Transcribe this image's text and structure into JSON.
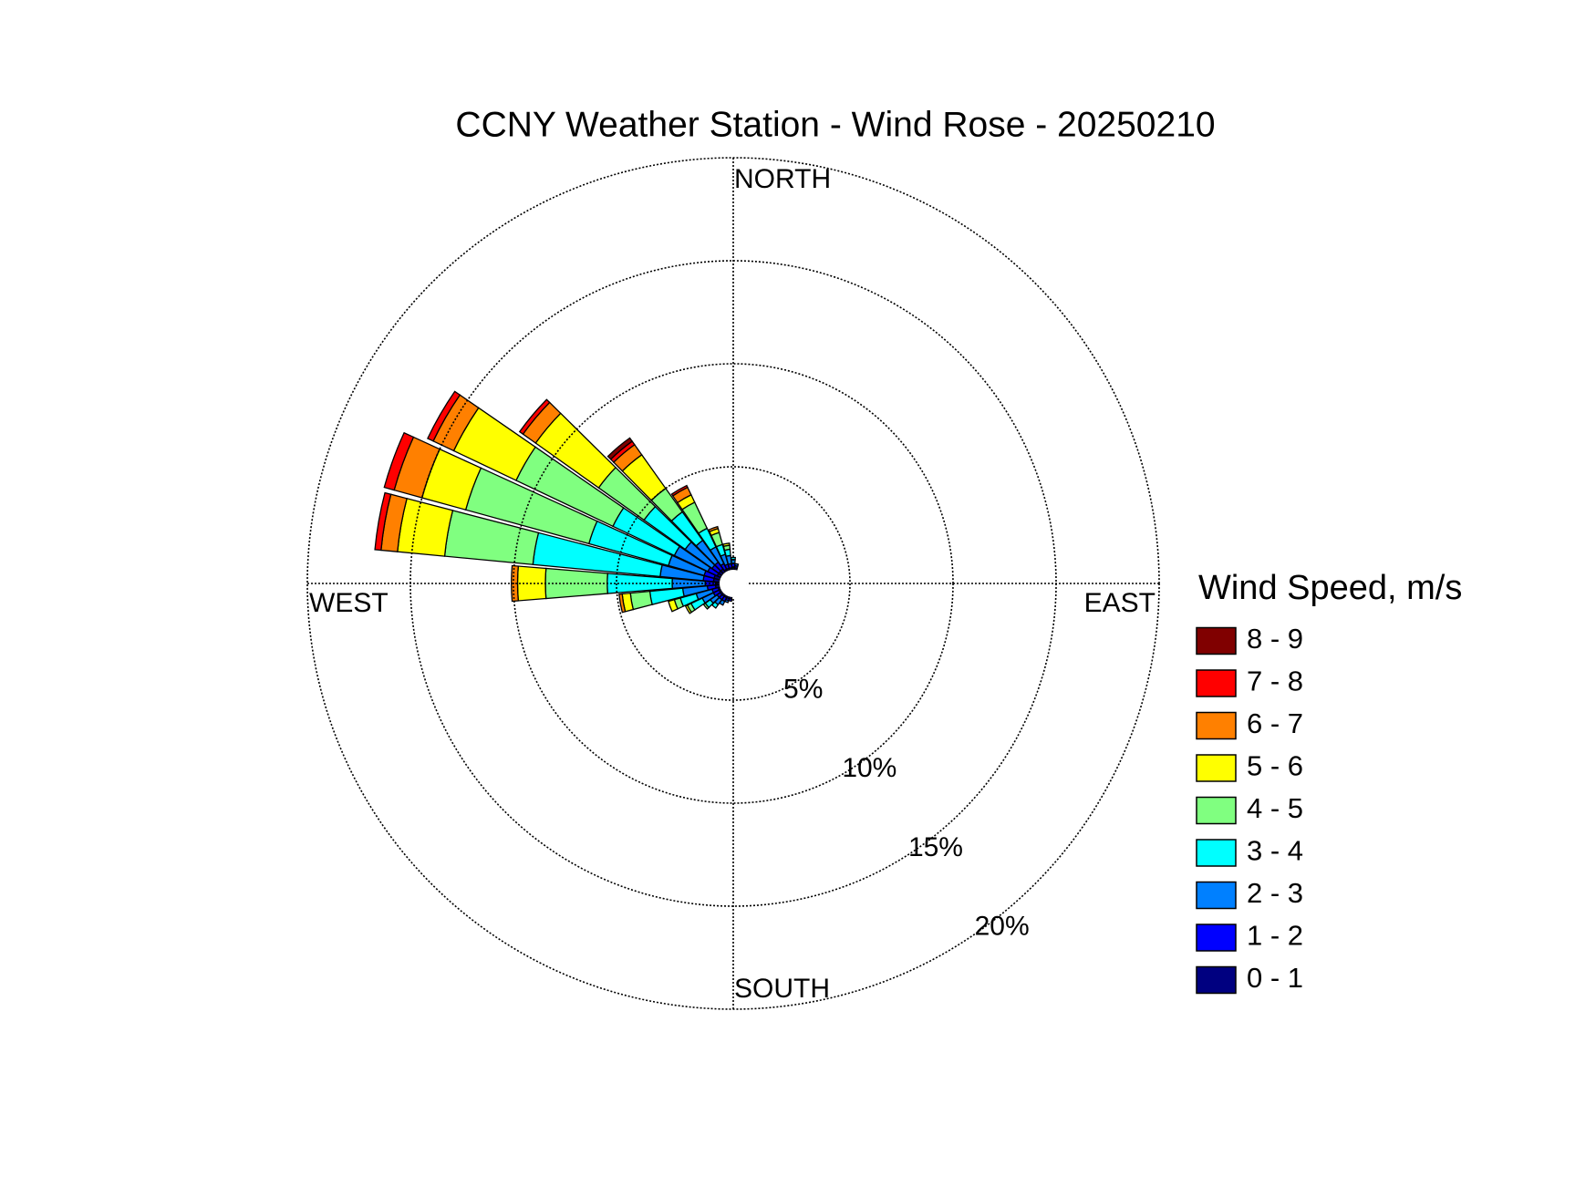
{
  "chart_data": {
    "type": "windrose",
    "title": "CCNY Weather Station - Wind Rose - 20250210",
    "direction_labels": [
      "NORTH",
      "EAST",
      "SOUTH",
      "WEST"
    ],
    "legend_title": "Wind Speed, m/s",
    "x": [
      0,
      10,
      20,
      30,
      40,
      50,
      60,
      70,
      80,
      90,
      100,
      110,
      120,
      130,
      140,
      150,
      160,
      170,
      180,
      190,
      200,
      210,
      220,
      230,
      240,
      250,
      260,
      270,
      280,
      290,
      300,
      310,
      320,
      330,
      340,
      350
    ],
    "rlim": [
      0,
      20
    ],
    "rticks": [
      {
        "value": 5,
        "label": "5%"
      },
      {
        "value": 10,
        "label": "10%"
      },
      {
        "value": 15,
        "label": "15%"
      },
      {
        "value": 20,
        "label": "20%"
      }
    ],
    "grid": true,
    "series": [
      {
        "name": "0 - 1",
        "color": "#000080",
        "values": [
          0.1,
          0.1,
          0,
          0,
          0,
          0,
          0,
          0,
          0,
          0,
          0,
          0,
          0,
          0,
          0,
          0,
          0,
          0,
          0,
          0.1,
          0.1,
          0.1,
          0.1,
          0.1,
          0.1,
          0.1,
          0.2,
          0.2,
          0.3,
          0.3,
          0.2,
          0.2,
          0.2,
          0.1,
          0.1,
          0.1
        ]
      },
      {
        "name": "1 - 2",
        "color": "#0000ff",
        "values": [
          0.2,
          0.1,
          0,
          0,
          0,
          0,
          0,
          0,
          0,
          0,
          0,
          0,
          0,
          0,
          0,
          0,
          0,
          0,
          0,
          0.1,
          0.1,
          0.2,
          0.2,
          0.2,
          0.3,
          0.3,
          0.4,
          0.5,
          0.5,
          0.5,
          0.5,
          0.4,
          0.4,
          0.3,
          0.2,
          0.2
        ]
      },
      {
        "name": "2 - 3",
        "color": "#0080ff",
        "values": [
          0.2,
          0.1,
          0,
          0,
          0,
          0,
          0,
          0,
          0,
          0,
          0,
          0,
          0,
          0,
          0,
          0,
          0,
          0,
          0,
          0,
          0.1,
          0.2,
          0.3,
          0.4,
          0.6,
          0.8,
          1.2,
          1.6,
          2.1,
          1.8,
          1.8,
          1.6,
          1.3,
          0.9,
          0.5,
          0.4
        ]
      },
      {
        "name": "3 - 4",
        "color": "#00ffff",
        "values": [
          0.1,
          0,
          0,
          0,
          0,
          0,
          0,
          0,
          0,
          0,
          0,
          0,
          0,
          0,
          0,
          0,
          0,
          0,
          0,
          0,
          0,
          0,
          0.2,
          0.3,
          0.6,
          0.8,
          1.6,
          3.15,
          6.2,
          4.0,
          3.3,
          2.45,
          1.7,
          1.0,
          0.5,
          0.3
        ]
      },
      {
        "name": "4 - 5",
        "color": "#80ff80",
        "values": [
          0,
          0,
          0,
          0,
          0,
          0,
          0,
          0,
          0,
          0,
          0,
          0,
          0,
          0,
          0,
          0,
          0,
          0,
          0,
          0,
          0,
          0,
          0,
          0.1,
          0.2,
          0.3,
          0.95,
          3.0,
          4.3,
          6.2,
          5.2,
          2.7,
          1.4,
          1.4,
          0.6,
          0.2
        ]
      },
      {
        "name": "5 - 6",
        "color": "#ffff00",
        "values": [
          0,
          0,
          0,
          0,
          0,
          0,
          0,
          0,
          0,
          0,
          0,
          0,
          0,
          0,
          0,
          0,
          0,
          0,
          0,
          0,
          0,
          0,
          0,
          0,
          0.1,
          0.3,
          0.4,
          1.35,
          2.3,
          2.2,
          3.35,
          3.75,
          2.0,
          0.4,
          0.2,
          0.1
        ]
      },
      {
        "name": "6 - 7",
        "color": "#ff8000",
        "values": [
          0,
          0,
          0,
          0,
          0,
          0,
          0,
          0,
          0,
          0,
          0,
          0,
          0,
          0,
          0,
          0,
          0,
          0,
          0,
          0,
          0,
          0,
          0,
          0,
          0,
          0,
          0.15,
          0.3,
          0.8,
          1.4,
          1.1,
          0.75,
          0.6,
          0.4,
          0.1,
          0
        ]
      },
      {
        "name": "7 - 8",
        "color": "#ff0000",
        "values": [
          0,
          0,
          0,
          0,
          0,
          0,
          0,
          0,
          0,
          0,
          0,
          0,
          0,
          0,
          0,
          0,
          0,
          0,
          0,
          0,
          0,
          0,
          0,
          0,
          0,
          0,
          0,
          0,
          0.3,
          0.5,
          0.3,
          0.2,
          0.2,
          0.1,
          0,
          0
        ]
      },
      {
        "name": "8 - 9",
        "color": "#800000",
        "values": [
          0,
          0,
          0,
          0,
          0,
          0,
          0,
          0,
          0,
          0,
          0,
          0,
          0,
          0,
          0,
          0,
          0,
          0,
          0,
          0,
          0,
          0,
          0,
          0,
          0,
          0,
          0,
          0,
          0,
          0,
          0,
          0,
          0.2,
          0,
          0,
          0
        ]
      }
    ]
  }
}
